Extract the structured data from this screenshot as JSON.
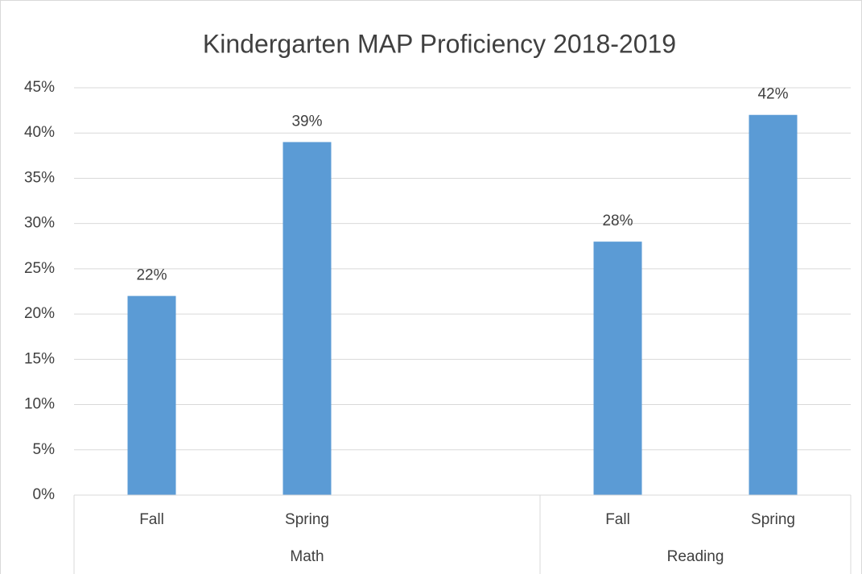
{
  "chart_data": {
    "type": "bar",
    "title": "Kindergarten MAP Proficiency  2018-2019",
    "groups": [
      {
        "name": "Math",
        "categories": [
          "Fall",
          "Spring",
          null
        ],
        "values": [
          22,
          39,
          null
        ],
        "value_labels": [
          "22%",
          "39%",
          null
        ]
      },
      {
        "name": "Reading",
        "categories": [
          "Fall",
          "Spring"
        ],
        "values": [
          28,
          42
        ],
        "value_labels": [
          "28%",
          "42%"
        ]
      }
    ],
    "color": "#5b9bd5",
    "ylim": [
      0,
      45
    ],
    "yticks": [
      {
        "value": 0,
        "label": "0%"
      },
      {
        "value": 5,
        "label": "5%"
      },
      {
        "value": 10,
        "label": "10%"
      },
      {
        "value": 15,
        "label": "15%"
      },
      {
        "value": 20,
        "label": "20%"
      },
      {
        "value": 25,
        "label": "25%"
      },
      {
        "value": 30,
        "label": "30%"
      },
      {
        "value": 35,
        "label": "35%"
      },
      {
        "value": 40,
        "label": "40%"
      },
      {
        "value": 45,
        "label": "45%"
      }
    ],
    "grid": true
  }
}
